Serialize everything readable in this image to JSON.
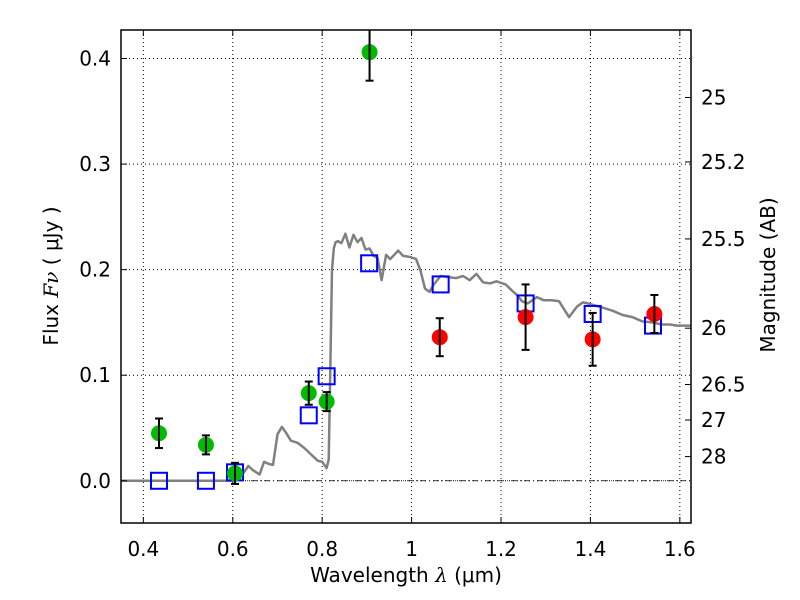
{
  "chart_data": {
    "type": "scatter",
    "title": "",
    "xlabel": "Wavelength",
    "xlabel_symbol": "λ",
    "xlabel_unit": "(μm)",
    "ylabel": "Flux",
    "ylabel_symbol": "Fν",
    "ylabel_unit": "( μJy )",
    "y2label": "Magnitude (AB)",
    "xlim": [
      0.35,
      1.625
    ],
    "ylim": [
      -0.04,
      0.427
    ],
    "grid": true,
    "xticks": [
      0.4,
      0.6,
      0.8,
      1.0,
      1.2,
      1.4,
      1.6
    ],
    "xtick_labels": [
      "0.4",
      "0.6",
      "0.8",
      "1",
      "1.2",
      "1.4",
      "1.6"
    ],
    "yticks": [
      0.0,
      0.1,
      0.2,
      0.3,
      0.4
    ],
    "ytick_labels": [
      "0.0",
      "0.1",
      "0.2",
      "0.3",
      "0.4"
    ],
    "y2ticks_mag": [
      25,
      25.2,
      25.5,
      26,
      26.5,
      27,
      28
    ],
    "y2tick_labels": [
      "25",
      "25.2",
      "25.5",
      "26",
      "26.5",
      "27",
      "28"
    ],
    "zero_line": true,
    "series": [
      {
        "name": "model-spectrum",
        "kind": "line",
        "color": "#808080",
        "x": [
          0.35,
          0.6,
          0.615,
          0.625,
          0.635,
          0.645,
          0.66,
          0.67,
          0.68,
          0.69,
          0.7,
          0.71,
          0.72,
          0.73,
          0.745,
          0.76,
          0.775,
          0.79,
          0.8,
          0.81,
          0.8145,
          0.818,
          0.822,
          0.826,
          0.83,
          0.835,
          0.843,
          0.852,
          0.861,
          0.87,
          0.879,
          0.888,
          0.897,
          0.906,
          0.915,
          0.924,
          0.933,
          0.943,
          0.952,
          0.961,
          0.97,
          0.981,
          0.997,
          1.01,
          1.02,
          1.03,
          1.04,
          1.05,
          1.065,
          1.08,
          1.1,
          1.115,
          1.13,
          1.145,
          1.16,
          1.175,
          1.19,
          1.21,
          1.225,
          1.236,
          1.247,
          1.26,
          1.27,
          1.28,
          1.296,
          1.314,
          1.33,
          1.352,
          1.37,
          1.383,
          1.394,
          1.41,
          1.427,
          1.45,
          1.472,
          1.494,
          1.516,
          1.538,
          1.56,
          1.578,
          1.594,
          1.625
        ],
        "y": [
          0.0,
          0.0,
          0.002,
          0.008,
          0.014,
          0.01,
          0.006,
          0.018,
          0.016,
          0.015,
          0.044,
          0.051,
          0.045,
          0.038,
          0.036,
          0.031,
          0.025,
          0.019,
          0.018,
          0.012,
          0.02,
          0.1,
          0.2,
          0.22,
          0.226,
          0.227,
          0.225,
          0.234,
          0.221,
          0.233,
          0.226,
          0.23,
          0.219,
          0.22,
          0.213,
          0.211,
          0.19,
          0.214,
          0.21,
          0.214,
          0.218,
          0.213,
          0.212,
          0.21,
          0.199,
          0.182,
          0.179,
          0.186,
          0.194,
          0.193,
          0.192,
          0.194,
          0.19,
          0.196,
          0.188,
          0.187,
          0.189,
          0.186,
          0.18,
          0.176,
          0.17,
          0.168,
          0.171,
          0.174,
          0.171,
          0.171,
          0.17,
          0.155,
          0.165,
          0.169,
          0.168,
          0.166,
          0.164,
          0.161,
          0.157,
          0.155,
          0.151,
          0.15,
          0.148,
          0.148,
          0.147,
          0.147
        ]
      },
      {
        "name": "model-photometry",
        "kind": "open-square",
        "color": "#0000ff",
        "x": [
          0.435,
          0.54,
          0.605,
          0.77,
          0.81,
          0.905,
          1.065,
          1.255,
          1.405,
          1.54
        ],
        "y": [
          0.0,
          0.0,
          0.008,
          0.062,
          0.099,
          0.206,
          0.186,
          0.168,
          0.158,
          0.147
        ]
      },
      {
        "name": "observed-optical",
        "kind": "filled-circle",
        "color": "#00bb00",
        "x": [
          0.435,
          0.54,
          0.605,
          0.77,
          0.81,
          0.906
        ],
        "y": [
          0.045,
          0.034,
          0.007,
          0.083,
          0.075,
          0.406
        ],
        "yerr": [
          0.014,
          0.009,
          0.01,
          0.011,
          0.009,
          0.027
        ]
      },
      {
        "name": "observed-nir",
        "kind": "filled-circle",
        "color": "#ff0000",
        "x": [
          1.063,
          1.255,
          1.405,
          1.543
        ],
        "y": [
          0.136,
          0.155,
          0.134,
          0.158
        ],
        "yerr": [
          0.018,
          0.031,
          0.025,
          0.018
        ]
      }
    ]
  }
}
